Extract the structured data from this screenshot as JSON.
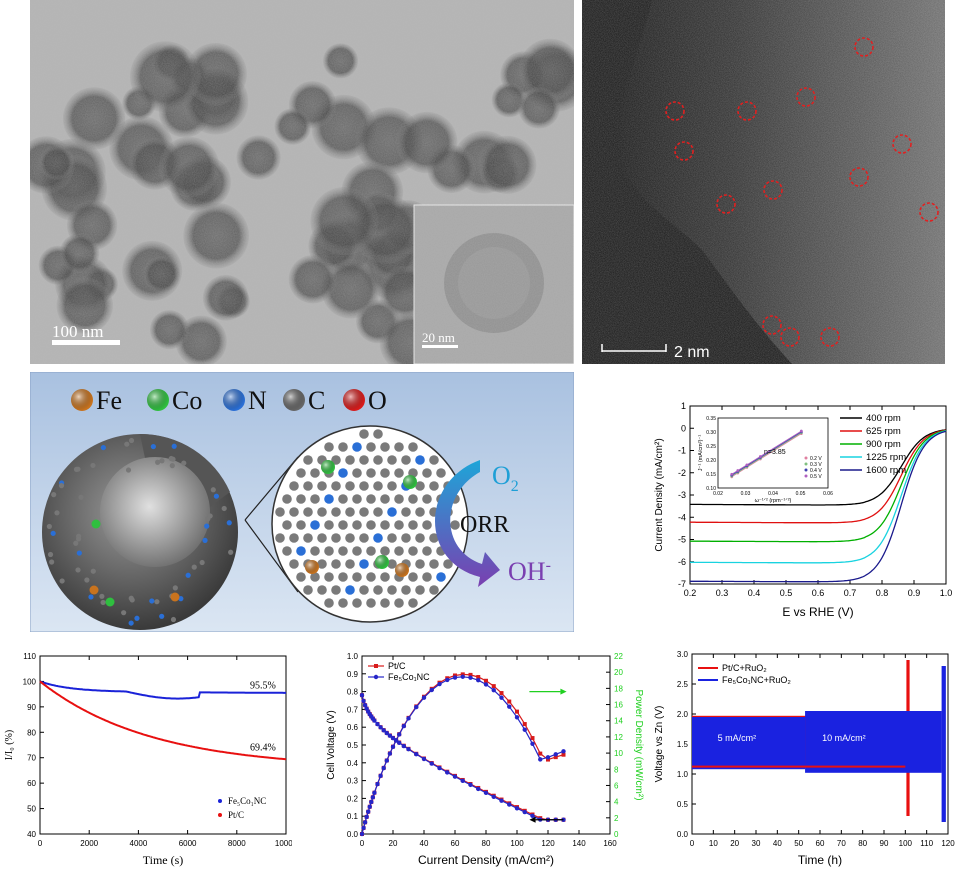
{
  "tem": {
    "scale_main": "100 nm",
    "scale_inset": "20 nm"
  },
  "haadf": {
    "scale": "2 nm"
  },
  "schematic": {
    "legend": [
      {
        "label": "Fe",
        "color": "#c8731e"
      },
      {
        "label": "Co",
        "color": "#2fbf3f"
      },
      {
        "label": "N",
        "color": "#2a6fd6"
      },
      {
        "label": "C",
        "color": "#666666"
      },
      {
        "label": "O",
        "color": "#d81b1b"
      }
    ],
    "reaction": "ORR",
    "reactant": "O",
    "reactant_sub": "2",
    "product": "OH",
    "product_sup": "-"
  },
  "chart_data": [
    {
      "type": "line",
      "xlabel": "E vs RHE (V)",
      "ylabel": "Current Density (mA/cm²)",
      "xlim": [
        0.2,
        1.0
      ],
      "ylim": [
        -7,
        1
      ],
      "xticks": [
        "0.2",
        "0.3",
        "0.4",
        "0.5",
        "0.6",
        "0.7",
        "0.8",
        "0.9",
        "1.0"
      ],
      "yticks": [
        "1",
        "0",
        "-1",
        "-2",
        "-3",
        "-4",
        "-5",
        "-6",
        "-7"
      ],
      "legend_position": "top-right",
      "series": [
        {
          "name": "400 rpm",
          "color": "#000000",
          "limit": -3.45
        },
        {
          "name": "625 rpm",
          "color": "#e01010",
          "limit": -4.25
        },
        {
          "name": "900 rpm",
          "color": "#00b000",
          "limit": -5.1
        },
        {
          "name": "1225 rpm",
          "color": "#19d3e0",
          "limit": -6.05
        },
        {
          "name": "1600 rpm",
          "color": "#1a1a8c",
          "limit": -6.9
        }
      ],
      "inset": {
        "xlabel": "ω⁻¹ᐟ² (rpm⁻¹ᐟ²)",
        "ylabel": "J⁻¹ (mA/cm²)⁻¹",
        "annotation": "n=3.85",
        "xticks": [
          "0.02",
          "0.03",
          "0.04",
          "0.05",
          "0.06"
        ],
        "yticks": [
          "0.10",
          "0.15",
          "0.20",
          "0.25",
          "0.30",
          "0.35"
        ],
        "legend": [
          {
            "name": "0.2 V",
            "color": "#e080a0"
          },
          {
            "name": "0.3 V",
            "color": "#80c080"
          },
          {
            "name": "0.4 V",
            "color": "#4040b0"
          },
          {
            "name": "0.5 V",
            "color": "#b060c0"
          }
        ]
      }
    },
    {
      "type": "line",
      "xlabel": "Time (s)",
      "ylabel": "I/I₀ (%)",
      "xlim": [
        0,
        10000
      ],
      "ylim": [
        40,
        110
      ],
      "xticks": [
        "0",
        "2000",
        "4000",
        "6000",
        "8000",
        "10000"
      ],
      "yticks": [
        "40",
        "50",
        "60",
        "70",
        "80",
        "90",
        "100",
        "110"
      ],
      "annotations": [
        "95.5%",
        "69.4%"
      ],
      "legend_position": "bottom-left",
      "series": [
        {
          "name": "Fe₅Co₁NC",
          "color": "#1a22d8",
          "final": 95.5
        },
        {
          "name": "Pt/C",
          "color": "#e81010",
          "final": 69.4
        }
      ]
    },
    {
      "type": "line",
      "xlabel": "Current Density (mA/cm²)",
      "ylabel": "Cell Voltage (V)",
      "y2label": "Power Density (mW/cm²)",
      "xlim": [
        0,
        160
      ],
      "ylim": [
        0,
        1.0
      ],
      "y2lim": [
        0,
        22
      ],
      "xticks": [
        "0",
        "20",
        "40",
        "60",
        "80",
        "100",
        "120",
        "140",
        "160"
      ],
      "yticks": [
        "0.0",
        "0.1",
        "0.2",
        "0.3",
        "0.4",
        "0.5",
        "0.6",
        "0.7",
        "0.8",
        "0.9",
        "1.0"
      ],
      "y2ticks": [
        "0",
        "2",
        "4",
        "6",
        "8",
        "10",
        "12",
        "14",
        "16",
        "18",
        "20",
        "22"
      ],
      "legend_position": "top-left",
      "series": [
        {
          "name": "Pt/C",
          "color": "#d81b1b",
          "marker": "square"
        },
        {
          "name": "Fe₅Co₁NC",
          "color": "#2626c8",
          "marker": "circle"
        }
      ],
      "arrow_color": "#20d020"
    },
    {
      "type": "line",
      "xlabel": "Time (h)",
      "ylabel": "Voltage vs Zn (V)",
      "xlim": [
        0,
        120
      ],
      "ylim": [
        0,
        3.0
      ],
      "xticks": [
        "0",
        "10",
        "20",
        "30",
        "40",
        "50",
        "60",
        "70",
        "80",
        "90",
        "100",
        "110",
        "120"
      ],
      "yticks": [
        "0.0",
        "0.5",
        "1.0",
        "1.5",
        "2.0",
        "2.5",
        "3.0"
      ],
      "annotations": [
        "5 mA/cm²",
        "10 mA/cm²"
      ],
      "legend_position": "top-left",
      "series": [
        {
          "name": "Pt/C+RuO₂",
          "color": "#e81010",
          "end_h": 102
        },
        {
          "name": "Fe₅Co₁NC+RuO₂",
          "color": "#1a22e0",
          "end_h": 119
        }
      ]
    }
  ]
}
